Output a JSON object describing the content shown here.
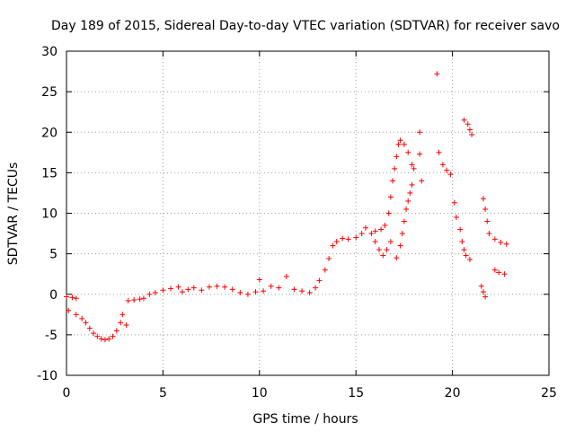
{
  "chart_data": {
    "type": "scatter",
    "title": "Day 189 of 2015, Sidereal Day-to-day VTEC variation (SDTVAR) for receiver savo",
    "xlabel": "GPS time / hours",
    "ylabel": "SDTVAR / TECUs",
    "xlim": [
      0,
      25
    ],
    "ylim": [
      -10,
      30
    ],
    "xticks": [
      0,
      5,
      10,
      15,
      20,
      25
    ],
    "yticks": [
      -10,
      -5,
      0,
      5,
      10,
      15,
      20,
      25,
      30
    ],
    "grid": true,
    "marker": "+",
    "color": "#ff0000",
    "series": [
      {
        "name": "SDTVAR",
        "points": [
          [
            0.0,
            -0.3
          ],
          [
            0.3,
            -0.4
          ],
          [
            0.5,
            -0.5
          ],
          [
            0.1,
            -2.0
          ],
          [
            0.5,
            -2.5
          ],
          [
            0.8,
            -3.0
          ],
          [
            1.0,
            -3.5
          ],
          [
            1.2,
            -4.2
          ],
          [
            1.4,
            -4.8
          ],
          [
            1.6,
            -5.2
          ],
          [
            1.8,
            -5.5
          ],
          [
            2.0,
            -5.6
          ],
          [
            2.2,
            -5.5
          ],
          [
            2.4,
            -5.2
          ],
          [
            2.6,
            -4.5
          ],
          [
            2.8,
            -3.5
          ],
          [
            2.9,
            -2.5
          ],
          [
            3.1,
            -3.8
          ],
          [
            3.2,
            -0.8
          ],
          [
            3.5,
            -0.7
          ],
          [
            3.8,
            -0.6
          ],
          [
            4.0,
            -0.5
          ],
          [
            4.3,
            0.0
          ],
          [
            4.6,
            0.2
          ],
          [
            5.0,
            0.5
          ],
          [
            5.4,
            0.7
          ],
          [
            5.8,
            0.9
          ],
          [
            6.0,
            0.3
          ],
          [
            6.3,
            0.6
          ],
          [
            6.6,
            0.8
          ],
          [
            7.0,
            0.5
          ],
          [
            7.4,
            0.9
          ],
          [
            7.8,
            1.0
          ],
          [
            8.2,
            0.9
          ],
          [
            8.6,
            0.6
          ],
          [
            9.0,
            0.2
          ],
          [
            9.4,
            0.0
          ],
          [
            9.8,
            0.3
          ],
          [
            10.0,
            1.8
          ],
          [
            10.2,
            0.4
          ],
          [
            10.6,
            1.0
          ],
          [
            11.0,
            0.8
          ],
          [
            11.4,
            2.2
          ],
          [
            11.8,
            0.6
          ],
          [
            12.2,
            0.4
          ],
          [
            12.6,
            0.2
          ],
          [
            12.9,
            0.8
          ],
          [
            13.1,
            1.7
          ],
          [
            13.4,
            3.0
          ],
          [
            13.6,
            4.4
          ],
          [
            13.8,
            6.0
          ],
          [
            14.0,
            6.5
          ],
          [
            14.3,
            6.9
          ],
          [
            14.6,
            6.8
          ],
          [
            15.0,
            7.0
          ],
          [
            15.3,
            7.5
          ],
          [
            15.5,
            8.2
          ],
          [
            15.8,
            7.5
          ],
          [
            16.0,
            6.5
          ],
          [
            16.2,
            5.5
          ],
          [
            16.4,
            4.8
          ],
          [
            16.6,
            5.5
          ],
          [
            16.8,
            6.5
          ],
          [
            16.0,
            7.8
          ],
          [
            16.3,
            8.0
          ],
          [
            16.5,
            8.5
          ],
          [
            16.7,
            10.0
          ],
          [
            16.8,
            12.0
          ],
          [
            16.9,
            14.0
          ],
          [
            17.0,
            15.5
          ],
          [
            17.1,
            17.0
          ],
          [
            17.2,
            18.5
          ],
          [
            17.3,
            19.0
          ],
          [
            17.5,
            18.5
          ],
          [
            17.7,
            17.5
          ],
          [
            17.9,
            16.0
          ],
          [
            18.0,
            15.5
          ],
          [
            17.1,
            4.5
          ],
          [
            17.3,
            6.0
          ],
          [
            17.4,
            7.5
          ],
          [
            17.5,
            9.0
          ],
          [
            17.6,
            10.5
          ],
          [
            17.7,
            11.5
          ],
          [
            17.8,
            12.5
          ],
          [
            17.9,
            13.5
          ],
          [
            18.3,
            20.0
          ],
          [
            18.3,
            17.3
          ],
          [
            18.4,
            14.0
          ],
          [
            19.2,
            27.2
          ],
          [
            19.3,
            17.5
          ],
          [
            19.5,
            16.0
          ],
          [
            19.7,
            15.3
          ],
          [
            19.9,
            14.8
          ],
          [
            20.1,
            11.3
          ],
          [
            20.2,
            9.5
          ],
          [
            20.4,
            8.0
          ],
          [
            20.5,
            6.5
          ],
          [
            20.6,
            5.5
          ],
          [
            20.7,
            4.8
          ],
          [
            20.9,
            4.3
          ],
          [
            20.6,
            21.5
          ],
          [
            20.8,
            21.0
          ],
          [
            20.9,
            20.3
          ],
          [
            21.0,
            19.7
          ],
          [
            21.5,
            1.0
          ],
          [
            21.6,
            0.3
          ],
          [
            21.7,
            -0.3
          ],
          [
            21.6,
            11.8
          ],
          [
            21.7,
            10.5
          ],
          [
            21.8,
            9.0
          ],
          [
            21.9,
            7.5
          ],
          [
            22.2,
            6.8
          ],
          [
            22.5,
            6.4
          ],
          [
            22.8,
            6.2
          ],
          [
            22.2,
            3.0
          ],
          [
            22.4,
            2.7
          ],
          [
            22.7,
            2.5
          ]
        ]
      }
    ]
  }
}
